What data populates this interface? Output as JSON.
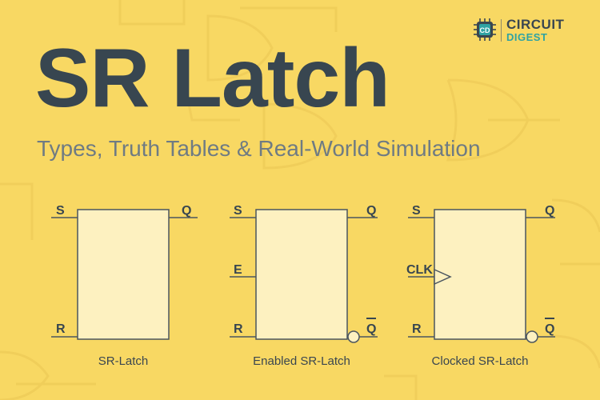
{
  "logo": {
    "line1": "CIRCUIT",
    "line2": "DIGEST",
    "chip_letters": "CD"
  },
  "title": "SR Latch",
  "subtitle": "Types, Truth Tables & Real-World Simulation",
  "diagrams": [
    {
      "inputs": [
        "S",
        "R"
      ],
      "outputs": [
        "Q"
      ],
      "caption": "SR-Latch"
    },
    {
      "inputs": [
        "S",
        "E",
        "R"
      ],
      "outputs": [
        "Q",
        "Q"
      ],
      "caption": "Enabled SR-Latch"
    },
    {
      "inputs": [
        "S",
        "CLK",
        "R"
      ],
      "outputs": [
        "Q",
        "Q"
      ],
      "caption": "Clocked SR-Latch"
    }
  ],
  "colors": {
    "background": "#f8d863",
    "title": "#384650",
    "subtitle": "#6f7b83",
    "block_fill": "#fdf1c0",
    "line": "#4a5560",
    "brand_teal": "#2fa3a3"
  }
}
